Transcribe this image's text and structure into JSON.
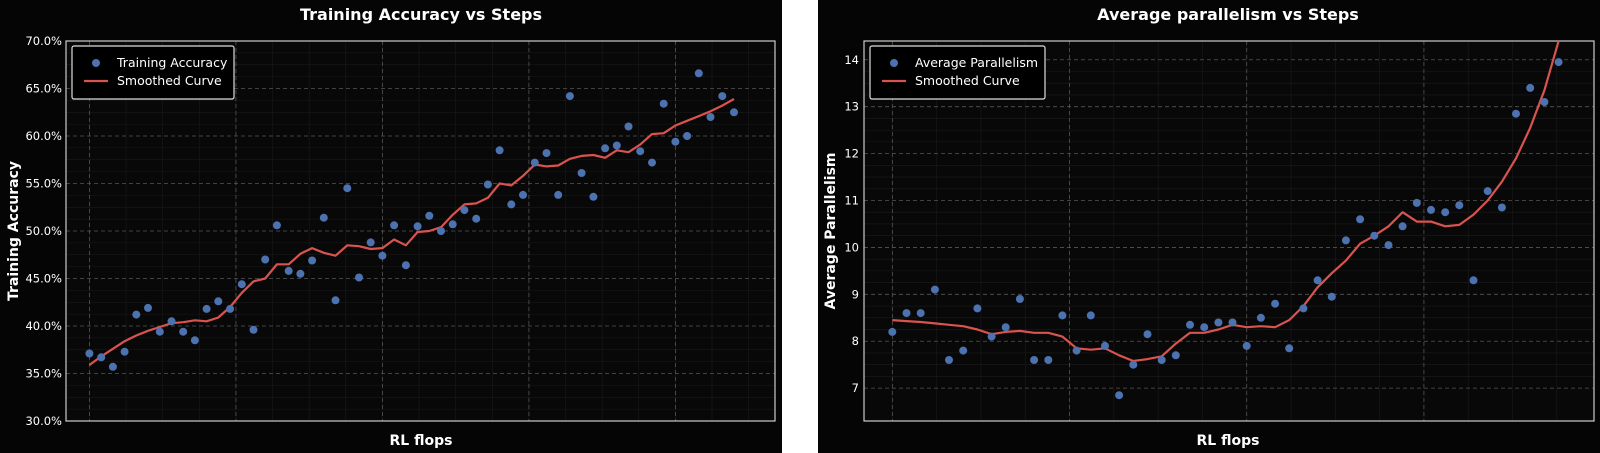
{
  "chart_data": [
    {
      "type": "scatter",
      "title": "Training Accuracy vs Steps",
      "xlabel": "RL flops",
      "ylabel": "Training Accuracy",
      "ylim": [
        30,
        70
      ],
      "yticks": [
        "30.0%",
        "35.0%",
        "40.0%",
        "45.0%",
        "50.0%",
        "55.0%",
        "60.0%",
        "65.0%",
        "70.0%"
      ],
      "legend_position": "top-left",
      "grid": true,
      "colors": {
        "points": "#4c72b0",
        "curve": "#d9534f"
      },
      "series": [
        {
          "name": "Training Accuracy",
          "kind": "points",
          "x": [
            0,
            1,
            2,
            3,
            4,
            5,
            6,
            7,
            8,
            9,
            10,
            11,
            12,
            13,
            14,
            15,
            16,
            17,
            18,
            19,
            20,
            21,
            22,
            23,
            24,
            25,
            26,
            27,
            28,
            29,
            30,
            31,
            32,
            33,
            34,
            35,
            36,
            37,
            38,
            39,
            40,
            41,
            42,
            43,
            44,
            45,
            46,
            47,
            48,
            49,
            50,
            51,
            52,
            53,
            54,
            55,
            56,
            57
          ],
          "values": [
            37.1,
            36.7,
            35.7,
            37.3,
            41.2,
            41.9,
            39.4,
            40.5,
            39.4,
            38.5,
            41.8,
            42.6,
            41.8,
            44.4,
            39.6,
            47.0,
            50.6,
            45.8,
            45.5,
            46.9,
            51.4,
            42.7,
            54.5,
            45.1,
            48.8,
            47.4,
            50.6,
            46.4,
            50.5,
            51.6,
            50.0,
            50.7,
            52.2,
            51.3,
            54.9,
            58.5,
            52.8,
            53.8,
            57.2,
            58.2,
            53.8,
            64.2,
            56.1,
            53.6,
            58.7,
            59.0,
            61.0,
            58.4,
            57.2,
            63.4,
            59.4,
            60.0,
            66.6,
            62.0,
            64.2,
            62.5,
            null,
            null
          ]
        },
        {
          "name": "Smoothed Curve",
          "kind": "line",
          "x": [
            0,
            1,
            2,
            3,
            4,
            5,
            6,
            7,
            8,
            9,
            10,
            11,
            12,
            13,
            14,
            15,
            16,
            17,
            18,
            19,
            20,
            21,
            22,
            23,
            24,
            25,
            26,
            27,
            28,
            29,
            30,
            31,
            32,
            33,
            34,
            35,
            36,
            37,
            38,
            39,
            40,
            41,
            42,
            43,
            44,
            45,
            46,
            47,
            48,
            49,
            50,
            51,
            52,
            53,
            54,
            55
          ],
          "values": [
            35.9,
            36.8,
            37.6,
            38.4,
            39.0,
            39.5,
            39.9,
            40.3,
            40.4,
            40.6,
            40.5,
            40.9,
            42.0,
            43.5,
            44.7,
            45.0,
            46.5,
            46.5,
            47.6,
            48.2,
            47.7,
            47.4,
            48.5,
            48.4,
            48.1,
            48.2,
            49.1,
            48.5,
            49.9,
            50.0,
            50.4,
            51.7,
            52.8,
            52.9,
            53.5,
            55.0,
            54.8,
            55.8,
            57.0,
            56.8,
            56.9,
            57.6,
            57.9,
            58.0,
            57.7,
            58.5,
            58.3,
            59.1,
            60.2,
            60.3,
            61.1,
            61.6,
            62.1,
            62.6,
            63.2,
            63.9
          ]
        }
      ]
    },
    {
      "type": "scatter",
      "title": "Average parallelism vs Steps",
      "xlabel": "RL flops",
      "ylabel": "Average Parallelism",
      "ylim": [
        6.3,
        14.4
      ],
      "yticks": [
        "7",
        "8",
        "9",
        "10",
        "11",
        "12",
        "13",
        "14"
      ],
      "legend_position": "top-left",
      "grid": true,
      "colors": {
        "points": "#4c72b0",
        "curve": "#d9534f"
      },
      "series": [
        {
          "name": "Average Parallelism",
          "kind": "points",
          "x": [
            0,
            1,
            2,
            3,
            4,
            5,
            6,
            7,
            8,
            9,
            10,
            11,
            12,
            13,
            14,
            15,
            16,
            17,
            18,
            19,
            20,
            21,
            22,
            23,
            24,
            25,
            26,
            27,
            28,
            29,
            30,
            31,
            32,
            33,
            34,
            35,
            36,
            37,
            38,
            39,
            40,
            41,
            42,
            43,
            44,
            45,
            46,
            47
          ],
          "values": [
            8.2,
            8.6,
            8.6,
            9.1,
            7.6,
            7.8,
            8.7,
            8.1,
            8.3,
            8.9,
            7.6,
            7.6,
            8.55,
            7.8,
            8.55,
            7.9,
            6.85,
            7.5,
            8.15,
            7.6,
            7.7,
            8.35,
            8.3,
            8.4,
            8.4,
            7.9,
            8.5,
            8.8,
            7.85,
            8.7,
            9.3,
            8.95,
            10.15,
            10.6,
            10.25,
            10.05,
            10.45,
            10.95,
            10.8,
            10.75,
            10.9,
            9.3,
            11.2,
            10.85,
            12.85,
            13.4,
            13.1,
            13.95
          ]
        },
        {
          "name": "Smoothed Curve",
          "kind": "line",
          "x": [
            0,
            1,
            2,
            3,
            4,
            5,
            6,
            7,
            8,
            9,
            10,
            11,
            12,
            13,
            14,
            15,
            16,
            17,
            18,
            19,
            20,
            21,
            22,
            23,
            24,
            25,
            26,
            27,
            28,
            29,
            30,
            31,
            32,
            33,
            34,
            35,
            36,
            37,
            38,
            39,
            40,
            41,
            42,
            43,
            44,
            45,
            46,
            47
          ],
          "values": [
            8.45,
            8.43,
            8.41,
            8.38,
            8.35,
            8.32,
            8.25,
            8.15,
            8.2,
            8.22,
            8.18,
            8.18,
            8.1,
            7.85,
            7.82,
            7.85,
            7.7,
            7.58,
            7.62,
            7.68,
            7.95,
            8.18,
            8.18,
            8.25,
            8.35,
            8.3,
            8.32,
            8.3,
            8.45,
            8.75,
            9.15,
            9.45,
            9.72,
            10.08,
            10.25,
            10.45,
            10.75,
            10.55,
            10.55,
            10.45,
            10.48,
            10.7,
            11.0,
            11.4,
            11.9,
            12.55,
            13.35,
            14.4
          ]
        }
      ]
    }
  ]
}
